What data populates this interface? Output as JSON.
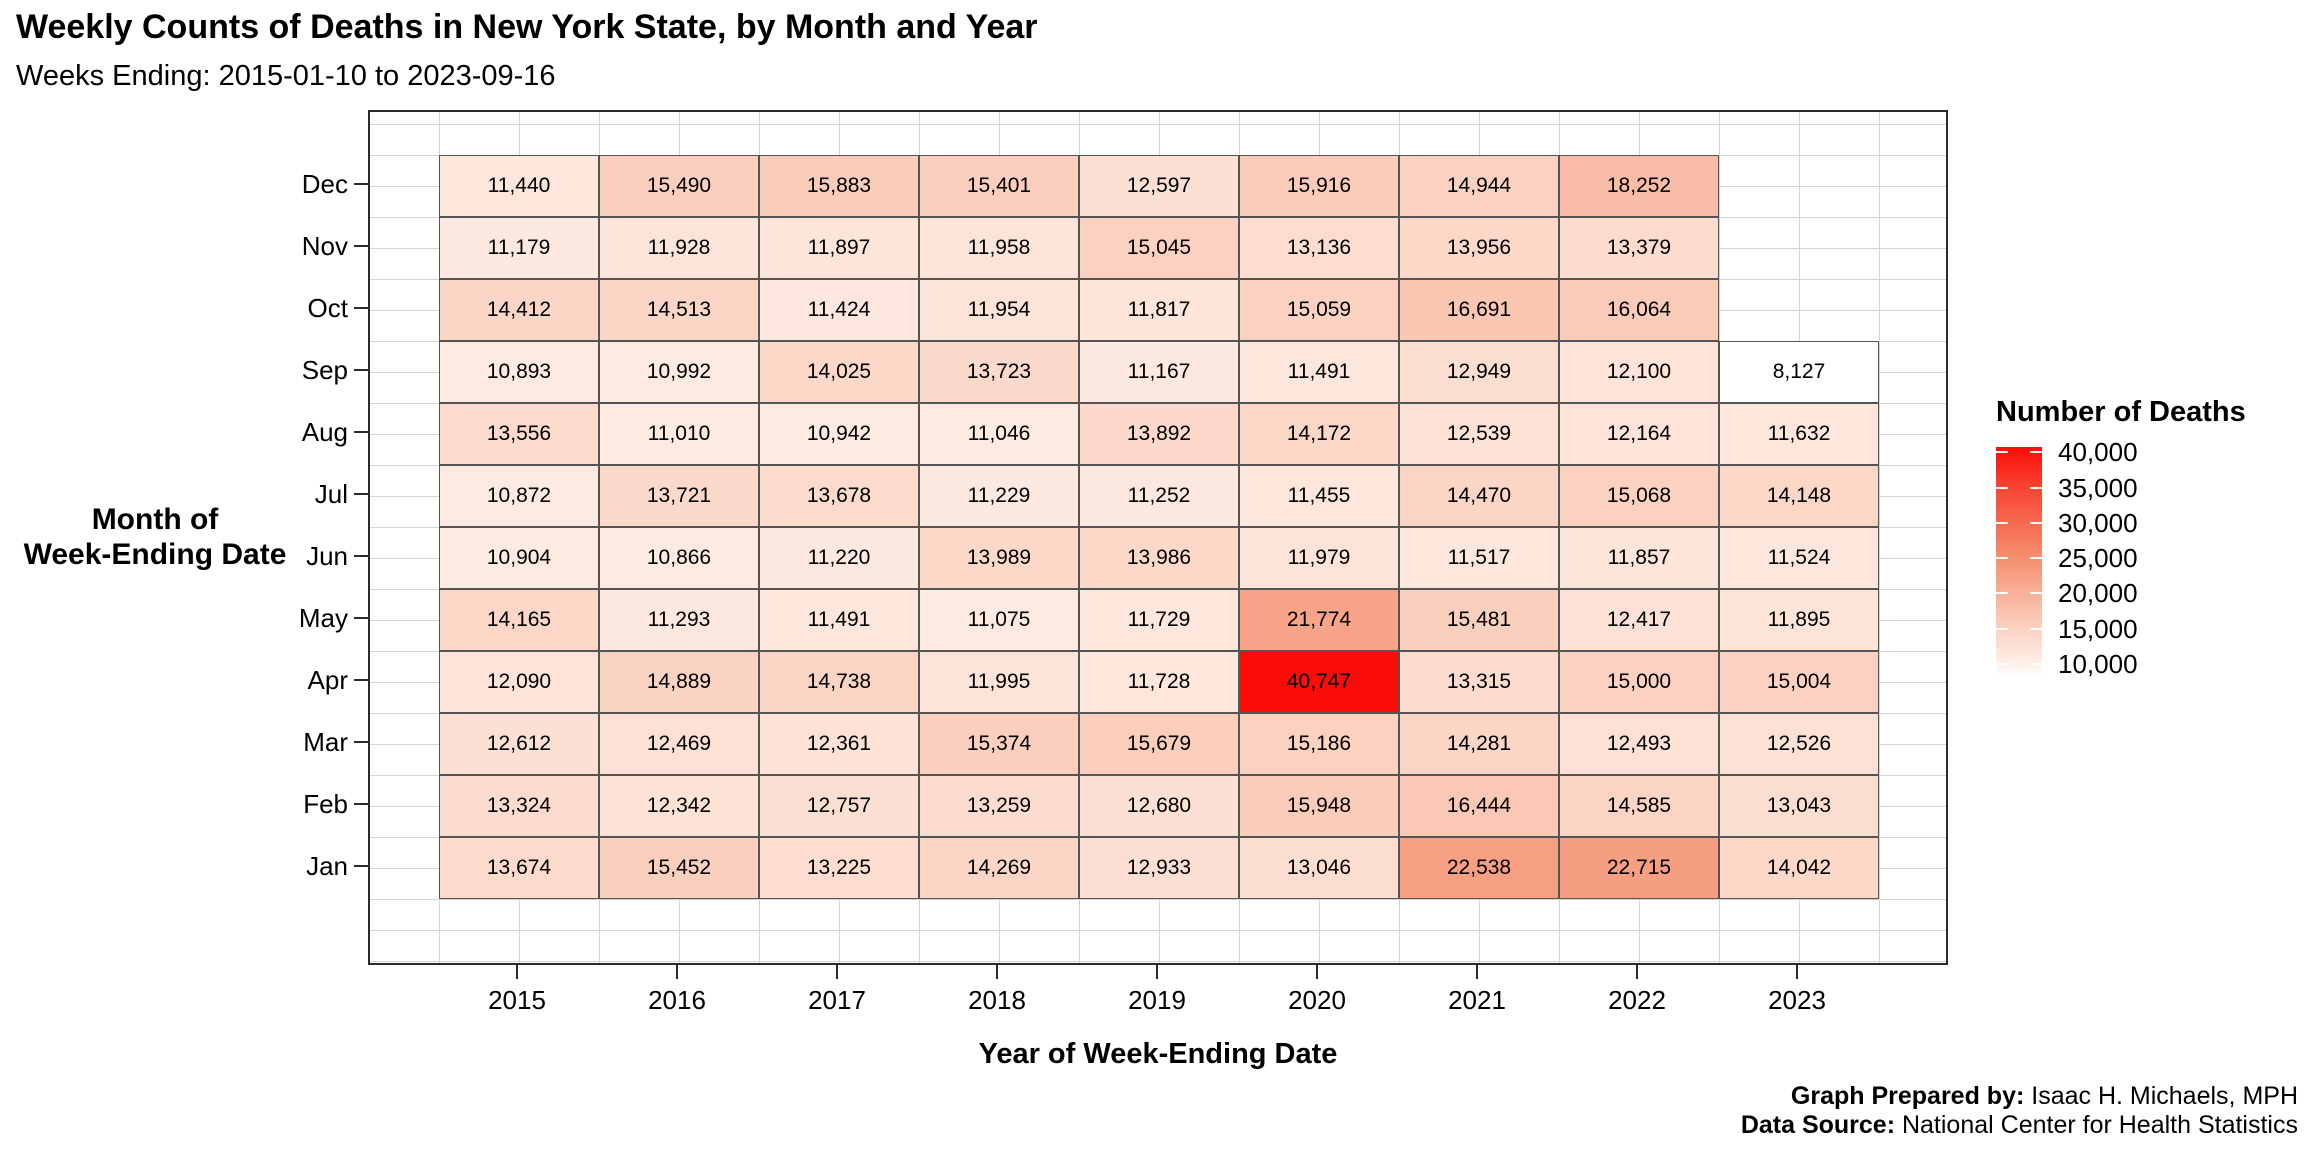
{
  "title": "Weekly Counts of Deaths in New York State, by Month and Year",
  "subtitle": "Weeks Ending: 2015-01-10 to 2023-09-16",
  "x_axis": {
    "title": "Year of Week-Ending Date",
    "ticks": [
      "2015",
      "2016",
      "2017",
      "2018",
      "2019",
      "2020",
      "2021",
      "2022",
      "2023"
    ]
  },
  "y_axis": {
    "title_line1": "Month of",
    "title_line2": "Week-Ending Date",
    "ticks": [
      "Dec",
      "Nov",
      "Oct",
      "Sep",
      "Aug",
      "Jul",
      "Jun",
      "May",
      "Apr",
      "Mar",
      "Feb",
      "Jan"
    ]
  },
  "legend": {
    "title": "Number of Deaths",
    "tick_values": [
      40000,
      35000,
      30000,
      25000,
      20000,
      15000,
      10000
    ],
    "tick_labels": [
      "40,000",
      "35,000",
      "30,000",
      "25,000",
      "20,000",
      "15,000",
      "10,000"
    ]
  },
  "footer": {
    "prepared_label": "Graph Prepared by:",
    "prepared_value": " Isaac H. Michaels, MPH",
    "source_label": "Data Source:",
    "source_value": " National Center for Health Statistics"
  },
  "chart_data": {
    "type": "heatmap",
    "title": "Weekly Counts of Deaths in New York State, by Month and Year",
    "subtitle": "Weeks Ending: 2015-01-10 to 2023-09-16",
    "xlabel": "Year of Week-Ending Date",
    "ylabel": "Month of Week-Ending Date",
    "legend_title": "Number of Deaths",
    "x_categories": [
      "2015",
      "2016",
      "2017",
      "2018",
      "2019",
      "2020",
      "2021",
      "2022",
      "2023"
    ],
    "y_categories": [
      "Dec",
      "Nov",
      "Oct",
      "Sep",
      "Aug",
      "Jul",
      "Jun",
      "May",
      "Apr",
      "Mar",
      "Feb",
      "Jan"
    ],
    "rows": [
      [
        11440,
        15490,
        15883,
        15401,
        12597,
        15916,
        14944,
        18252,
        null
      ],
      [
        11179,
        11928,
        11897,
        11958,
        15045,
        13136,
        13956,
        13379,
        null
      ],
      [
        14412,
        14513,
        11424,
        11954,
        11817,
        15059,
        16691,
        16064,
        null
      ],
      [
        10893,
        10992,
        14025,
        13723,
        11167,
        11491,
        12949,
        12100,
        8127
      ],
      [
        13556,
        11010,
        10942,
        11046,
        13892,
        14172,
        12539,
        12164,
        11632
      ],
      [
        10872,
        13721,
        13678,
        11229,
        11252,
        11455,
        14470,
        15068,
        14148
      ],
      [
        10904,
        10866,
        11220,
        13989,
        13986,
        11979,
        11517,
        11857,
        11524
      ],
      [
        14165,
        11293,
        11491,
        11075,
        11729,
        21774,
        15481,
        12417,
        11895
      ],
      [
        12090,
        14889,
        14738,
        11995,
        11728,
        40747,
        13315,
        15000,
        15004
      ],
      [
        12612,
        12469,
        12361,
        15374,
        15679,
        15186,
        14281,
        12493,
        12526
      ],
      [
        13324,
        12342,
        12757,
        13259,
        12680,
        15948,
        16444,
        14585,
        13043
      ],
      [
        13674,
        15452,
        13225,
        14269,
        12933,
        13046,
        22538,
        22715,
        14042
      ]
    ],
    "value_domain": [
      8127,
      40747
    ],
    "color_scale": {
      "low": "#FFFFFF",
      "high": "#FA0D08",
      "anchors": [
        {
          "value": 8127,
          "color": "#FFFFFF"
        },
        {
          "value": 10000,
          "color": "#FEF0E9"
        },
        {
          "value": 15000,
          "color": "#FBD2C1"
        },
        {
          "value": 20000,
          "color": "#F8B097"
        },
        {
          "value": 25000,
          "color": "#F58F6F"
        },
        {
          "value": 30000,
          "color": "#F56A50"
        },
        {
          "value": 35000,
          "color": "#F74432"
        },
        {
          "value": 40747,
          "color": "#FA0D08"
        }
      ]
    },
    "legend_position": "right",
    "grid": true
  }
}
